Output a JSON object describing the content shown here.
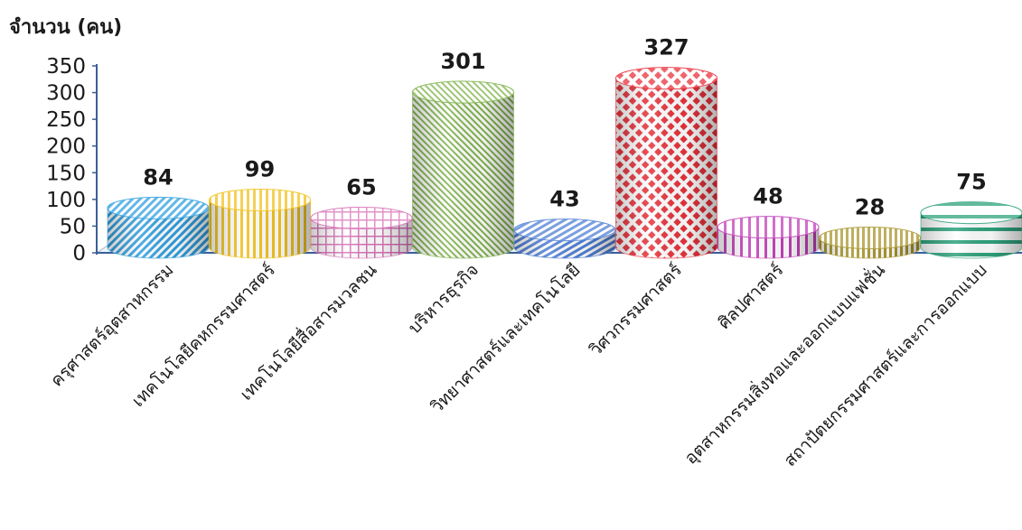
{
  "chart_data": {
    "type": "bar",
    "ylabel": "จำนวน (คน)",
    "ylim": [
      0,
      350
    ],
    "yticks": [
      0,
      50,
      100,
      150,
      200,
      250,
      300,
      350
    ],
    "grid": false,
    "categories": [
      "ครุศาสตร์อุตสาหกรรม",
      "เทคโนโลยีคหกรรมศาสตร์",
      "เทคโนโลยีสื่อสารมวลชน",
      "บริหารธุรกิจ",
      "วิทยาศาสตร์และเทคโนโลยี",
      "วิศวกรรมศาสตร์",
      "ศิลปศาสตร์",
      "อุตสาหกรรมสิ่งทอและออกแบบแฟชั่น",
      "สถาปัตยกรรมศาสตร์และการออกแบบ"
    ],
    "values": [
      84,
      99,
      65,
      301,
      43,
      327,
      48,
      28,
      75
    ],
    "colors": [
      "#2f9fe0",
      "#f2c21c",
      "#d86fb6",
      "#7fb34a",
      "#4f7fd6",
      "#e8323c",
      "#c23fb8",
      "#a8962c",
      "#2fa37e"
    ]
  }
}
